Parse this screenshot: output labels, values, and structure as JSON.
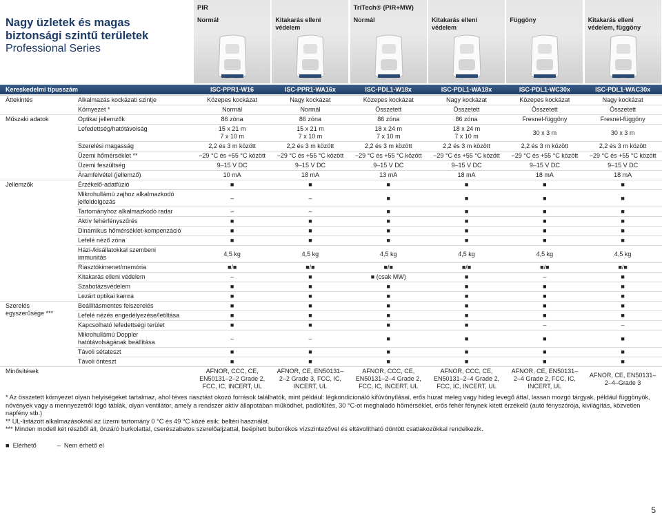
{
  "header": {
    "title": "Nagy üzletek és magas biztonsági szintű területek",
    "subtitle": "Professional Series",
    "families": [
      {
        "name": "PIR",
        "variants": [
          "Normál",
          [
            "Kitakarás elleni",
            "védelem"
          ]
        ]
      },
      {
        "name": "TriTech® (PIR+MW)",
        "variants": [
          "Normál",
          [
            "Kitakarás elleni",
            "védelem"
          ],
          "Függöny",
          [
            "Kitakarás elleni",
            "védelem, függöny"
          ]
        ]
      }
    ],
    "model_label": "Kereskedelmi típusszám",
    "models": [
      "ISC‑PPR1‑W16",
      "ISC‑PPR1‑WA16x",
      "ISC‑PDL1‑W18x",
      "ISC‑PDL1‑WA18x",
      "ISC‑PDL1‑WC30x",
      "ISC‑PDL1‑WAC30x"
    ]
  },
  "table": {
    "sections": [
      {
        "name": "Áttekintés",
        "rows": [
          {
            "label": "Alkalmazás kockázati szintje",
            "cells": [
              "Közepes kockázat",
              "Nagy kockázat",
              "Közepes kockázat",
              "Nagy kockázat",
              "Közepes kockázat",
              "Nagy kockázat"
            ]
          },
          {
            "label": "Környezet *",
            "cells": [
              "Normál",
              "Normál",
              "Összetett",
              "Összetett",
              "Összetett",
              "Összetett"
            ]
          }
        ]
      },
      {
        "name": "Műszaki adatok",
        "rows": [
          {
            "label": "Optikai jellemzők",
            "cells": [
              "86 zóna",
              "86 zóna",
              "86 zóna",
              "86 zóna",
              "Fresnel-függöny",
              "Fresnel-függöny"
            ]
          },
          {
            "label": "Lefedettség/hatótávolság",
            "cells": [
              [
                "15 x 21 m",
                "7 x 10 m"
              ],
              [
                "15 x 21 m",
                "7 x 10 m"
              ],
              [
                "18 x 24 m",
                "7 x 10 m"
              ],
              [
                "18 x 24 m",
                "7 x 10 m"
              ],
              "30 x 3 m",
              "30 x 3 m"
            ]
          },
          {
            "label": "Szerelési magasság",
            "cells": [
              "2,2 és 3 m között",
              "2,2 és 3 m között",
              "2,2 és 3 m között",
              "2,2 és 3 m között",
              "2,2 és 3 m között",
              "2,2 és 3 m között"
            ]
          },
          {
            "label": "Üzemi hőmérséklet **",
            "cells": [
              "−29 °C és +55 °C között",
              "−29 °C és +55 °C között",
              "−29 °C és +55 °C között",
              "−29 °C és +55 °C között",
              "−29 °C és +55 °C között",
              "−29 °C és +55 °C között"
            ]
          },
          {
            "label": "Üzemi feszültség",
            "cells": [
              "9–15 V DC",
              "9–15 V DC",
              "9–15 V DC",
              "9–15 V DC",
              "9–15 V DC",
              "9–15 V DC"
            ]
          },
          {
            "label": "Áramfelvétel (jellemző)",
            "cells": [
              "10 mA",
              "18 mA",
              "13 mA",
              "18 mA",
              "18 mA",
              "18 mA"
            ]
          }
        ]
      },
      {
        "name": "Jellemzők",
        "rows": [
          {
            "label": "Érzékelő-adatfúzió",
            "cells": [
              "■",
              "■",
              "■",
              "■",
              "■",
              "■"
            ]
          },
          {
            "label": [
              "Mikrohullámú zajhoz alkalmazkodó",
              "jelfeldolgozás"
            ],
            "cells": [
              "–",
              "–",
              "■",
              "■",
              "■",
              "■"
            ]
          },
          {
            "label": "Tartományhoz alkalmazkodó radar",
            "cells": [
              "–",
              "–",
              "■",
              "■",
              "■",
              "■"
            ]
          },
          {
            "label": "Aktív fehérfényszűrés",
            "cells": [
              "■",
              "■",
              "■",
              "■",
              "■",
              "■"
            ]
          },
          {
            "label": "Dinamikus hőmérséklet-kompenzáció",
            "cells": [
              "■",
              "■",
              "■",
              "■",
              "■",
              "■"
            ]
          },
          {
            "label": "Lefelé néző zóna",
            "cells": [
              "■",
              "■",
              "■",
              "■",
              "■",
              "■"
            ]
          },
          {
            "label": [
              "Házi-/kisállatokkal szembeni",
              "immunitás"
            ],
            "cells": [
              "4,5 kg",
              "4,5 kg",
              "4,5 kg",
              "4,5 kg",
              "4,5 kg",
              "4,5 kg"
            ]
          },
          {
            "label": "Riasztókimenet/memória",
            "cells": [
              "■/■",
              "■/■",
              "■/■",
              "■/■",
              "■/■",
              "■/■"
            ]
          },
          {
            "label": "Kitakarás elleni védelem",
            "cells": [
              "–",
              "■",
              "■ (csak MW)",
              "■",
              "–",
              "■"
            ]
          },
          {
            "label": "Szabotázsvédelem",
            "cells": [
              "■",
              "■",
              "■",
              "■",
              "■",
              "■"
            ]
          },
          {
            "label": "Lezárt optikai kamra",
            "cells": [
              "■",
              "■",
              "■",
              "■",
              "■",
              "■"
            ]
          }
        ]
      },
      {
        "name": [
          "Szerelés",
          "egyszerűsége ***"
        ],
        "rows": [
          {
            "label": "Beállításmentes felszerelés",
            "cells": [
              "■",
              "■",
              "■",
              "■",
              "■",
              "■"
            ]
          },
          {
            "label": "Lefelé nézés engedélyezése/letiltása",
            "cells": [
              "■",
              "■",
              "■",
              "■",
              "■",
              "■"
            ]
          },
          {
            "label": "Kapcsolható lefedettségi terület",
            "cells": [
              "■",
              "■",
              "■",
              "■",
              "–",
              "–"
            ]
          },
          {
            "label": [
              "Mikrohullámú Doppler",
              "hatótávolságának beállítása"
            ],
            "cells": [
              "–",
              "–",
              "■",
              "■",
              "■",
              "■"
            ]
          },
          {
            "label": "Távoli sétateszt",
            "cells": [
              "■",
              "■",
              "■",
              "■",
              "■",
              "■"
            ]
          },
          {
            "label": "Távoli önteszt",
            "cells": [
              "■",
              "■",
              "■",
              "■",
              "■",
              "■"
            ]
          }
        ]
      },
      {
        "name": "Minősítések",
        "rows": [
          {
            "cells": [
              [
                "AFNOR, CCC, CE,",
                "EN50131–2–2 Grade 2,",
                "FCC, IC, INCERT, UL"
              ],
              [
                "AFNOR, CE, EN50131–",
                "2–2 Grade 3, FCC, IC,",
                "INCERT, UL"
              ],
              [
                "AFNOR, CCC, CE,",
                "EN50131–2–4 Grade 2,",
                "FCC, IC, INCERT, UL"
              ],
              [
                "AFNOR, CCC, CE,",
                "EN50131–2–4 Grade 2,",
                "FCC, IC, INCERT, UL"
              ],
              [
                "AFNOR, CE, EN50131–",
                "2–4 Grade 2, FCC, IC,",
                "INCERT, UL"
              ],
              [
                "AFNOR, CE, EN50131–",
                "2–4–Grade 3"
              ]
            ]
          }
        ]
      }
    ]
  },
  "footnotes": [
    "* Az összetett környezet olyan helyiségeket tartalmaz, ahol téves riasztást okozó források találhatók, mint például: légkondicionáló kifúvónyílásai, erős huzat meleg vagy hideg levegő áttal, lassan mozgó tárgyak, például függönyök, növények vagy a mennyezetről lógó táblák, olyan ventilátor, amely a rendszer aktív állapotában működhet, padlófűtés, 30 °C-ot meghaladó hőmérséklet, erős fehér fénynek kitett érzékelő (autó fényszórója, kivilágítás, közvetlen napfény stb.)",
    "** UL-listázott alkalmazásoknál az üzemi tartomány 0 °C és 49 °C közé esik; beltéri használat.",
    "*** Minden modell két részből áll, önzáró burkolattal, cserészabatos szerelőaljzattal, beépített buborékos vízszintezővel és eltávolítható döntött csatlakozókkal rendelkezik."
  ],
  "legend": [
    {
      "symbol": "■",
      "label": "Elérhető"
    },
    {
      "symbol": "–",
      "label": "Nem érhető el"
    }
  ],
  "page_number": "5"
}
